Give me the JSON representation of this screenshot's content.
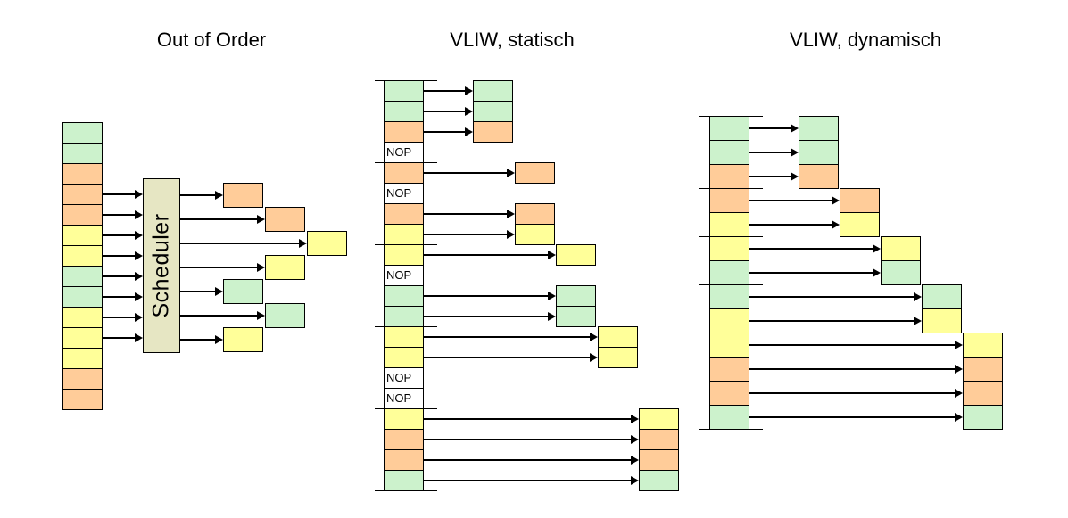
{
  "colors": {
    "green": "#ccf2cc",
    "orange": "#ffcc99",
    "yellow": "#ffff99",
    "nop_fill": "#ffffff",
    "scheduler_fill": "#e6e6c3",
    "border": "#000000",
    "arrow": "#000000",
    "background": "#ffffff"
  },
  "panels": {
    "out_of_order": {
      "title": "Out of Order",
      "scheduler_label": "Scheduler",
      "stack": [
        "green",
        "green",
        "orange",
        "orange",
        "orange",
        "yellow",
        "yellow",
        "green",
        "green",
        "yellow",
        "yellow",
        "yellow",
        "orange",
        "orange"
      ],
      "scheduler_in_rows": [
        4,
        5,
        6,
        7,
        8,
        9,
        10,
        11
      ],
      "dispatch": [
        {
          "row": 1,
          "col": 1,
          "color": "orange"
        },
        {
          "row": 2,
          "col": 2,
          "color": "orange"
        },
        {
          "row": 3,
          "col": 3,
          "color": "yellow"
        },
        {
          "row": 4,
          "col": 2,
          "color": "yellow"
        },
        {
          "row": 5,
          "col": 1,
          "color": "green"
        },
        {
          "row": 6,
          "col": 2,
          "color": "green"
        },
        {
          "row": 7,
          "col": 1,
          "color": "yellow"
        }
      ]
    },
    "vliw_static": {
      "title": "VLIW, statisch",
      "nop_label": "NOP",
      "slots": [
        {
          "color": "green",
          "word": 1
        },
        {
          "color": "green",
          "word": 1
        },
        {
          "color": "orange",
          "word": 1
        },
        {
          "nop": true
        },
        {
          "color": "orange",
          "word": 2
        },
        {
          "nop": true
        },
        {
          "color": "orange",
          "word": 2
        },
        {
          "color": "yellow",
          "word": 2
        },
        {
          "color": "yellow",
          "word": 3
        },
        {
          "nop": true
        },
        {
          "color": "green",
          "word": 3
        },
        {
          "color": "green",
          "word": 3
        },
        {
          "color": "yellow",
          "word": 4
        },
        {
          "color": "yellow",
          "word": 4
        },
        {
          "nop": true
        },
        {
          "nop": true
        },
        {
          "color": "yellow",
          "word": 5
        },
        {
          "color": "orange",
          "word": 5
        },
        {
          "color": "orange",
          "word": 5
        },
        {
          "color": "green",
          "word": 5
        }
      ],
      "separators_after_slot": [
        0,
        4,
        8,
        12,
        16,
        20
      ]
    },
    "vliw_dynamic": {
      "title": "VLIW, dynamisch",
      "slots": [
        {
          "color": "green",
          "word": 1
        },
        {
          "color": "green",
          "word": 1
        },
        {
          "color": "orange",
          "word": 1
        },
        {
          "color": "orange",
          "word": 2
        },
        {
          "color": "yellow",
          "word": 2
        },
        {
          "color": "yellow",
          "word": 3
        },
        {
          "color": "green",
          "word": 3
        },
        {
          "color": "green",
          "word": 4
        },
        {
          "color": "yellow",
          "word": 4
        },
        {
          "color": "yellow",
          "word": 5
        },
        {
          "color": "orange",
          "word": 5
        },
        {
          "color": "orange",
          "word": 5
        },
        {
          "color": "green",
          "word": 5
        }
      ],
      "separators_after_slot": [
        0,
        3,
        5,
        7,
        9,
        13
      ]
    }
  }
}
